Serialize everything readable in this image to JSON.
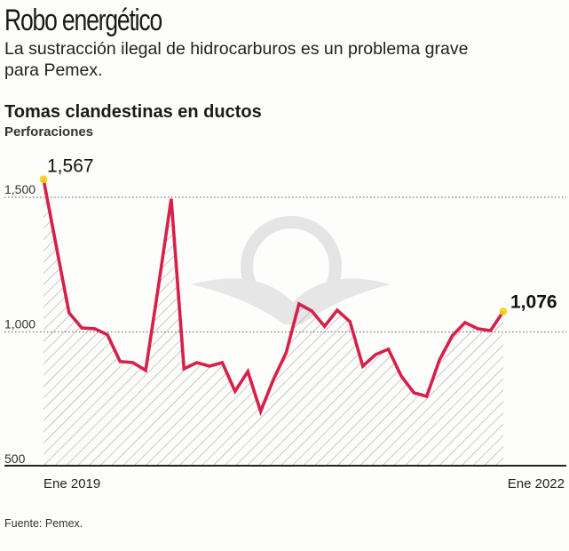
{
  "header": {
    "title": "Robo energético",
    "subtitle": "La sustracción ilegal de hidrocarburos es un problema grave para Pemex."
  },
  "source": "Fuente: Pemex.",
  "colors": {
    "line": "#d81f4a",
    "marker": "#f2d21b",
    "hatch": "#9a9a9a",
    "watermark": "#e3e3e3"
  },
  "watermark_icon": "pemex-logo",
  "chart_data": {
    "type": "area",
    "title": "Tomas clandestinas en ductos",
    "ylabel": "Perforaciones",
    "x_start_label": "Ene 2019",
    "x_end_label": "Ene 2022",
    "x_range": [
      "2019-01",
      "2022-01"
    ],
    "frequency": "monthly",
    "ylim": [
      500,
      1600
    ],
    "yticks": [
      500,
      1000,
      1500
    ],
    "ytick_labels": [
      "500",
      "1,000",
      "1,500"
    ],
    "grid": "dotted horizontal at 1,000 and 1,500",
    "annotations": [
      {
        "index": 0,
        "label": "1,567"
      },
      {
        "index": 36,
        "label": "1,076"
      }
    ],
    "values": [
      1567,
      1318,
      1071,
      1015,
      1012,
      990,
      890,
      886,
      857,
      1170,
      1494,
      863,
      886,
      873,
      886,
      780,
      853,
      705,
      823,
      923,
      1104,
      1078,
      1021,
      1081,
      1038,
      873,
      916,
      936,
      837,
      774,
      761,
      896,
      985,
      1035,
      1012,
      1005,
      1076
    ]
  }
}
